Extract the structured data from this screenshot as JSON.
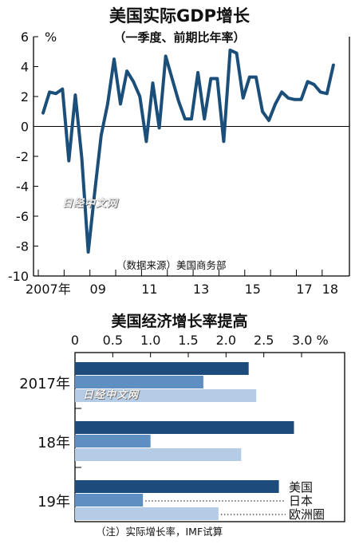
{
  "line_chart": {
    "title": "美国实际GDP增长",
    "subtitle": "（一季度、前期比年率）",
    "unit_label": "%",
    "source_note": "（数据来源）美国商务部",
    "watermark": "日经中文网"
  },
  "bar_chart": {
    "title": "美国经济增长率提高",
    "note": "（注）实际增长率，IMF试算",
    "watermark": "日经中文网"
  },
  "colors": {
    "line": "#1b4f7a",
    "us": "#1d4c7c",
    "japan": "#5f8fc2",
    "eurozone": "#b5cce6",
    "axis": "#000000"
  },
  "chart_data": [
    {
      "type": "line",
      "title": "美国实际GDP增长",
      "subtitle": "（一季度、前期比年率）",
      "ylabel": "%",
      "ylim": [
        -10,
        6
      ],
      "yticks": [
        6,
        4,
        2,
        0,
        -2,
        -4,
        -6,
        -8,
        -10
      ],
      "xlim": [
        2007.0,
        2018.5
      ],
      "xtick_labels": [
        {
          "x": 2007,
          "label": "2007年"
        },
        {
          "x": 2009,
          "label": "09"
        },
        {
          "x": 2011,
          "label": "11"
        },
        {
          "x": 2013,
          "label": "13"
        },
        {
          "x": 2015,
          "label": "15"
        },
        {
          "x": 2017,
          "label": "17"
        },
        {
          "x": 2018,
          "label": "18"
        }
      ],
      "grid": false,
      "series": [
        {
          "values": [
            [
              2007.0,
              0.9
            ],
            [
              2007.25,
              2.3
            ],
            [
              2007.5,
              2.2
            ],
            [
              2007.75,
              2.5
            ],
            [
              2008.0,
              -2.3
            ],
            [
              2008.25,
              2.1
            ],
            [
              2008.5,
              -2.1
            ],
            [
              2008.75,
              -8.4
            ],
            [
              2009.0,
              -4.4
            ],
            [
              2009.25,
              -0.6
            ],
            [
              2009.5,
              1.5
            ],
            [
              2009.75,
              4.5
            ],
            [
              2010.0,
              1.5
            ],
            [
              2010.25,
              3.7
            ],
            [
              2010.5,
              3.0
            ],
            [
              2010.75,
              2.0
            ],
            [
              2011.0,
              -1.0
            ],
            [
              2011.25,
              2.9
            ],
            [
              2011.5,
              -0.1
            ],
            [
              2011.75,
              4.7
            ],
            [
              2012.0,
              3.2
            ],
            [
              2012.25,
              1.7
            ],
            [
              2012.5,
              0.5
            ],
            [
              2012.75,
              0.5
            ],
            [
              2013.0,
              3.6
            ],
            [
              2013.25,
              0.5
            ],
            [
              2013.5,
              3.2
            ],
            [
              2013.75,
              3.2
            ],
            [
              2014.0,
              -1.0
            ],
            [
              2014.25,
              5.1
            ],
            [
              2014.5,
              4.9
            ],
            [
              2014.75,
              1.9
            ],
            [
              2015.0,
              3.3
            ],
            [
              2015.25,
              3.3
            ],
            [
              2015.5,
              1.0
            ],
            [
              2015.75,
              0.4
            ],
            [
              2016.0,
              1.5
            ],
            [
              2016.25,
              2.3
            ],
            [
              2016.5,
              1.9
            ],
            [
              2016.75,
              1.8
            ],
            [
              2017.0,
              1.8
            ],
            [
              2017.25,
              3.0
            ],
            [
              2017.5,
              2.8
            ],
            [
              2017.75,
              2.3
            ],
            [
              2018.0,
              2.2
            ],
            [
              2018.25,
              4.1
            ]
          ]
        }
      ]
    },
    {
      "type": "bar",
      "orientation": "horizontal",
      "title": "美国经济增长率提高",
      "xlim": [
        0,
        3.0
      ],
      "xtick_labels": [
        "0",
        "0.5",
        "1.0",
        "1.5",
        "2.0",
        "2.5",
        "3.0 %"
      ],
      "xticks": [
        0,
        0.5,
        1.0,
        1.5,
        2.0,
        2.5,
        3.0
      ],
      "categories": [
        "2017年",
        "18年",
        "19年"
      ],
      "legend_position": "right of last group",
      "series": [
        {
          "name": "美国",
          "values": [
            2.3,
            2.9,
            2.7
          ]
        },
        {
          "name": "日本",
          "values": [
            1.7,
            1.0,
            0.9
          ]
        },
        {
          "name": "欧洲圈",
          "values": [
            2.4,
            2.2,
            1.9
          ]
        }
      ]
    }
  ]
}
